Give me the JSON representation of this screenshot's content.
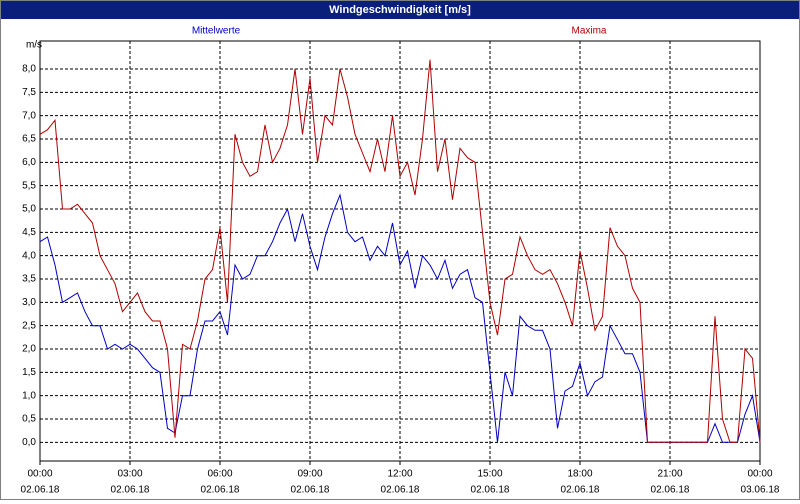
{
  "chart_data": {
    "type": "line",
    "title": "Windgeschwindigkeit [m/s]",
    "y_label": "m/s",
    "x": [
      0,
      0.25,
      0.5,
      0.75,
      1,
      1.25,
      1.5,
      1.75,
      2,
      2.25,
      2.5,
      2.75,
      3,
      3.25,
      3.5,
      3.75,
      4,
      4.25,
      4.5,
      4.75,
      5,
      5.25,
      5.5,
      5.75,
      6,
      6.25,
      6.5,
      6.75,
      7,
      7.25,
      7.5,
      7.75,
      8,
      8.25,
      8.5,
      8.75,
      9,
      9.25,
      9.5,
      9.75,
      10,
      10.25,
      10.5,
      10.75,
      11,
      11.25,
      11.5,
      11.75,
      12,
      12.25,
      12.5,
      12.75,
      13,
      13.25,
      13.5,
      13.75,
      14,
      14.25,
      14.5,
      14.75,
      15,
      15.25,
      15.5,
      15.75,
      16,
      16.25,
      16.5,
      16.75,
      17,
      17.25,
      17.5,
      17.75,
      18,
      18.25,
      18.5,
      18.75,
      19,
      19.25,
      19.5,
      19.75,
      20,
      20.25,
      20.5,
      20.75,
      21,
      21.25,
      21.5,
      21.75,
      22,
      22.25,
      22.5,
      22.75,
      23,
      23.25,
      23.5,
      23.75,
      24
    ],
    "series": [
      {
        "name": "Mittelwerte",
        "color": "#0000c0",
        "legend_position": "left",
        "values": [
          4.3,
          4.4,
          3.8,
          3.0,
          3.1,
          3.2,
          2.8,
          2.5,
          2.5,
          2.0,
          2.1,
          2.0,
          2.1,
          2.0,
          1.8,
          1.6,
          1.5,
          0.3,
          0.2,
          1.0,
          1.0,
          2.0,
          2.6,
          2.6,
          2.8,
          2.3,
          3.8,
          3.5,
          3.6,
          4.0,
          4.0,
          4.3,
          4.7,
          5.0,
          4.3,
          4.9,
          4.2,
          3.7,
          4.4,
          4.9,
          5.3,
          4.5,
          4.3,
          4.4,
          3.9,
          4.2,
          4.0,
          4.7,
          3.8,
          4.1,
          3.3,
          4.0,
          3.8,
          3.5,
          3.9,
          3.3,
          3.6,
          3.7,
          3.1,
          3.0,
          1.5,
          0.0,
          1.5,
          1.0,
          2.7,
          2.5,
          2.4,
          2.4,
          2.0,
          0.3,
          1.1,
          1.2,
          1.7,
          1.0,
          1.3,
          1.4,
          2.5,
          2.2,
          1.9,
          1.9,
          1.5,
          0.0,
          0.0,
          0.0,
          0.0,
          0.0,
          0.0,
          0.0,
          0.0,
          0.0,
          0.4,
          0.0,
          0.0,
          0.0,
          0.6,
          1.0,
          0.0
        ]
      },
      {
        "name": "Maxima",
        "color": "#b00000",
        "legend_position": "right",
        "values": [
          6.6,
          6.7,
          6.9,
          5.0,
          5.0,
          5.1,
          4.9,
          4.7,
          4.0,
          3.7,
          3.4,
          2.8,
          3.0,
          3.2,
          2.8,
          2.6,
          2.6,
          2.0,
          0.1,
          2.1,
          2.0,
          2.6,
          3.5,
          3.7,
          4.6,
          3.0,
          6.6,
          6.0,
          5.7,
          5.8,
          6.8,
          6.0,
          6.3,
          6.8,
          8.0,
          6.6,
          7.8,
          6.0,
          7.0,
          6.8,
          8.0,
          7.4,
          6.6,
          6.2,
          5.8,
          6.5,
          5.8,
          7.0,
          5.7,
          6.0,
          5.3,
          6.5,
          8.2,
          5.8,
          6.5,
          5.2,
          6.3,
          6.1,
          6.0,
          4.5,
          3.0,
          2.3,
          3.5,
          3.6,
          4.4,
          4.0,
          3.7,
          3.6,
          3.7,
          3.4,
          3.0,
          2.5,
          4.1,
          3.3,
          2.4,
          2.7,
          4.6,
          4.2,
          4.0,
          3.3,
          3.0,
          0.0,
          0.0,
          0.0,
          0.0,
          0.0,
          0.0,
          0.0,
          0.0,
          0.0,
          2.7,
          0.5,
          0.0,
          0.0,
          2.0,
          1.8,
          0.0
        ]
      }
    ],
    "xlim": [
      0,
      24
    ],
    "xticks": [
      {
        "value": 0,
        "label": "00:00",
        "sublabel": "02.06.18"
      },
      {
        "value": 3,
        "label": "03:00",
        "sublabel": "02.06.18"
      },
      {
        "value": 6,
        "label": "06:00",
        "sublabel": "02.06.18"
      },
      {
        "value": 9,
        "label": "09:00",
        "sublabel": "02.06.18"
      },
      {
        "value": 12,
        "label": "12:00",
        "sublabel": "02.06.18"
      },
      {
        "value": 15,
        "label": "15:00",
        "sublabel": "02.06.18"
      },
      {
        "value": 18,
        "label": "18:00",
        "sublabel": "02.06.18"
      },
      {
        "value": 21,
        "label": "21:00",
        "sublabel": "02.06.18"
      },
      {
        "value": 24,
        "label": "00:00",
        "sublabel": "03.06.18"
      }
    ],
    "ylim": [
      -0.4,
      8.6
    ],
    "yticks": [
      {
        "value": 0,
        "label": "0,0"
      },
      {
        "value": 0.5,
        "label": "0,5"
      },
      {
        "value": 1,
        "label": "1,0"
      },
      {
        "value": 1.5,
        "label": "1,5"
      },
      {
        "value": 2,
        "label": "2,0"
      },
      {
        "value": 2.5,
        "label": "2,5"
      },
      {
        "value": 3,
        "label": "3,0"
      },
      {
        "value": 3.5,
        "label": "3,5"
      },
      {
        "value": 4,
        "label": "4,0"
      },
      {
        "value": 4.5,
        "label": "4,5"
      },
      {
        "value": 5,
        "label": "5,0"
      },
      {
        "value": 5.5,
        "label": "5,5"
      },
      {
        "value": 6,
        "label": "6,0"
      },
      {
        "value": 6.5,
        "label": "6,5"
      },
      {
        "value": 7,
        "label": "7,0"
      },
      {
        "value": 7.5,
        "label": "7,5"
      },
      {
        "value": 8,
        "label": "8,0"
      }
    ],
    "grid": true
  }
}
